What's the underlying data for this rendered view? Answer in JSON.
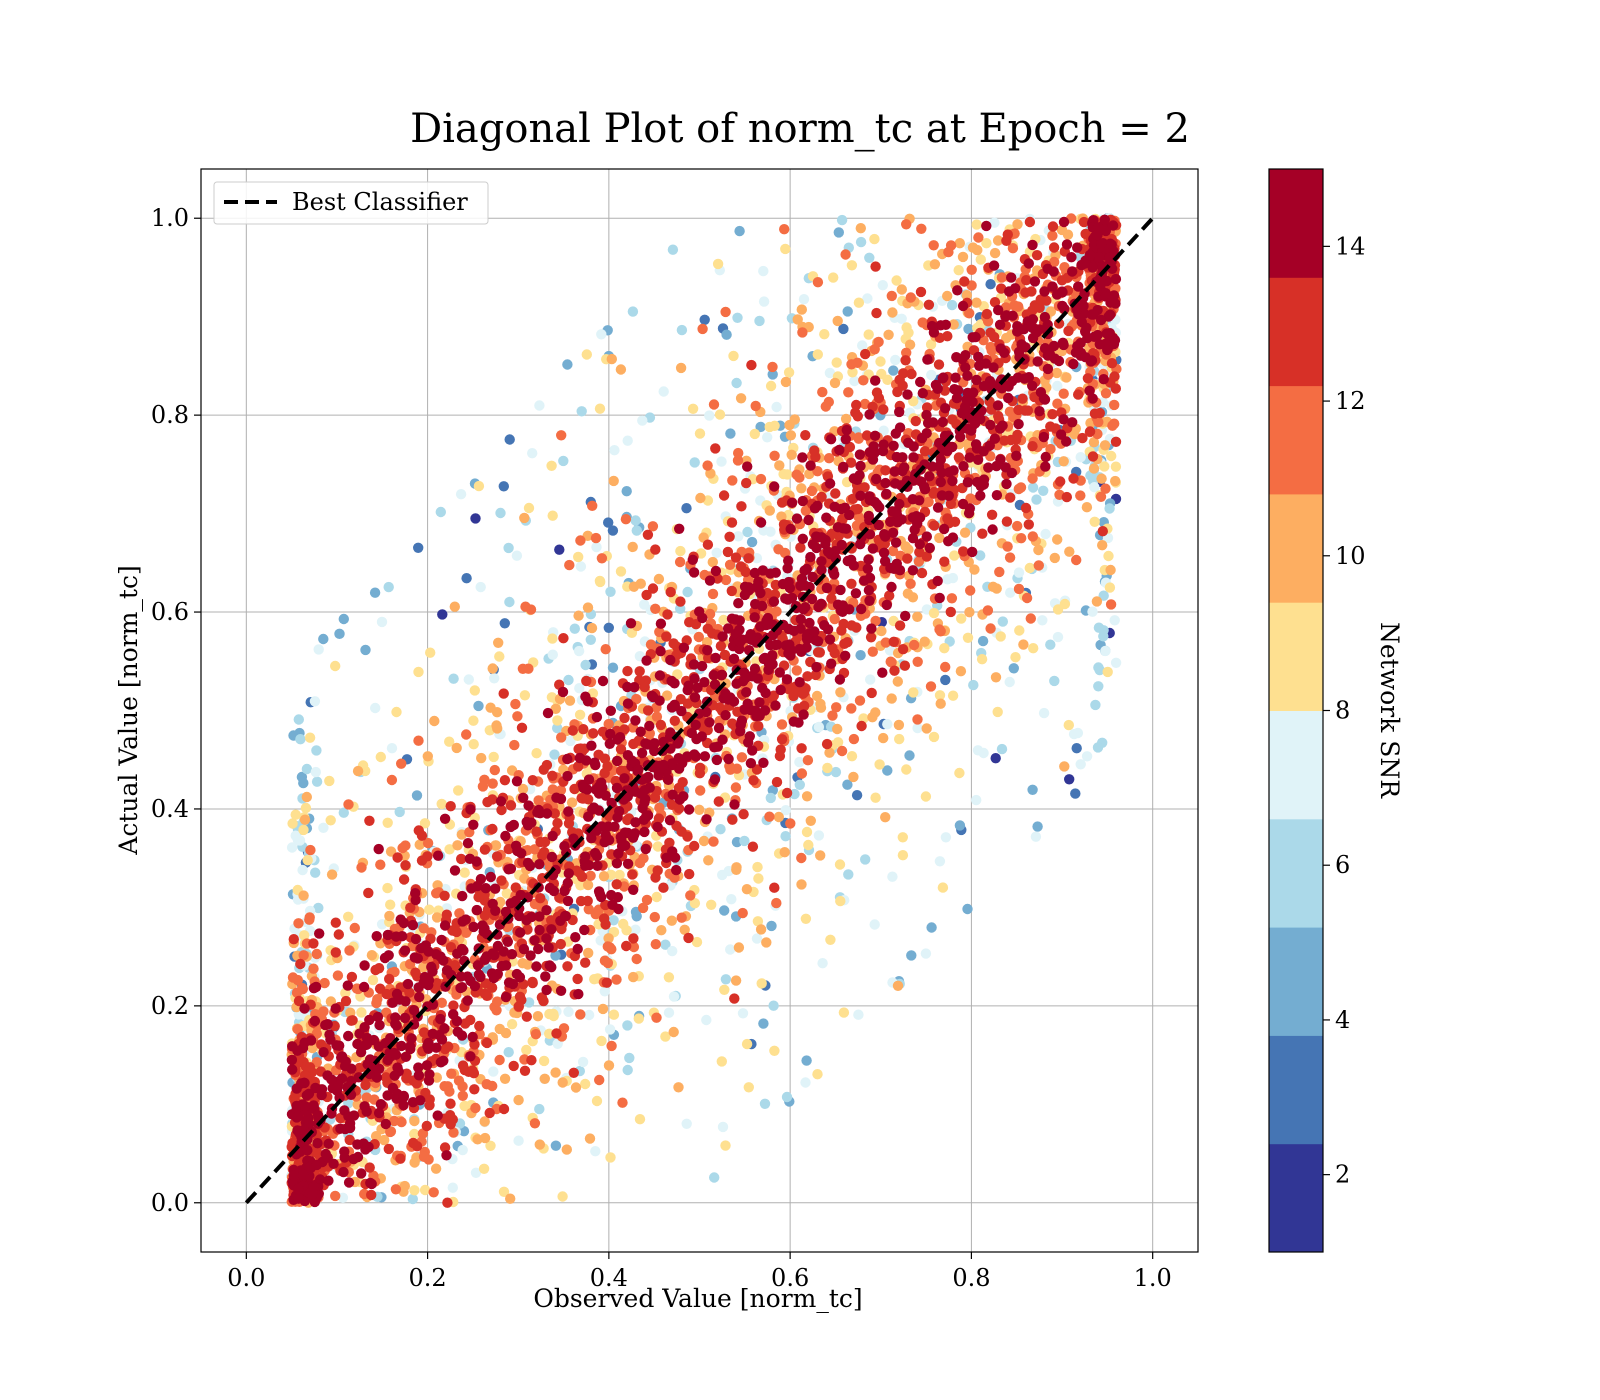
{
  "chart_data": {
    "type": "scatter",
    "title": "Diagonal Plot of norm_tc at Epoch = 2",
    "xlabel": "Observed Value [norm_tc]",
    "ylabel": "Actual Value [norm_tc]",
    "xlim": [
      -0.05,
      1.05
    ],
    "ylim": [
      -0.05,
      1.05
    ],
    "x_ticks": [
      "0.0",
      "0.2",
      "0.4",
      "0.6",
      "0.8",
      "1.0"
    ],
    "y_ticks": [
      "0.0",
      "0.2",
      "0.4",
      "0.6",
      "0.8",
      "1.0"
    ],
    "grid": true,
    "legend": {
      "position": "upper-left",
      "entries": [
        "Best Classifier"
      ]
    },
    "reference_line": {
      "name": "Best Classifier",
      "style": "dashed",
      "color": "#000000",
      "x": [
        0.0,
        1.0
      ],
      "y": [
        0.0,
        1.0
      ]
    },
    "scatter_description": {
      "color_variable": "Network SNR",
      "approx_x_range": [
        0.05,
        0.96
      ],
      "approx_y_range": [
        0.0,
        1.0
      ],
      "trend": "points cluster along the diagonal; high SNR near the diagonal, low SNR scattered away from it"
    },
    "colorbar": {
      "label": "Network SNR",
      "range": [
        1,
        15
      ],
      "ticks": [
        "2",
        "4",
        "6",
        "8",
        "10",
        "12",
        "14"
      ],
      "tick_values": [
        2,
        4,
        6,
        8,
        10,
        12,
        14
      ],
      "bins": 10,
      "colors": [
        "#313695",
        "#4575b4",
        "#74add1",
        "#abd9e9",
        "#e0f3f8",
        "#fee090",
        "#fdae61",
        "#f46d43",
        "#d73027",
        "#a50026"
      ]
    }
  }
}
